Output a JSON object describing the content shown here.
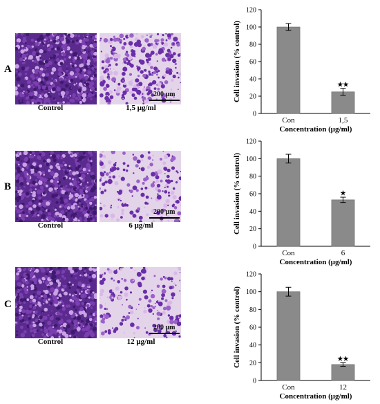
{
  "panels": [
    {
      "letter": "A",
      "image_left_caption": "Control",
      "image_right_caption": "1,5 μg/ml",
      "scale_label": "200 μm",
      "chart_data": {
        "type": "bar",
        "categories": [
          "Con",
          "1,5"
        ],
        "values": [
          100,
          25
        ],
        "errors": [
          4,
          4
        ],
        "significance": [
          "",
          "★★"
        ],
        "xlabel": "Concentration (μg/ml)",
        "ylabel": "Cell invasion (% control)",
        "ylim": [
          0,
          120
        ],
        "yticks": [
          0,
          20,
          40,
          60,
          80,
          100,
          120
        ],
        "grid": false,
        "bar_color": "#8a8a8a"
      }
    },
    {
      "letter": "B",
      "image_left_caption": "Control",
      "image_right_caption": "6 μg/ml",
      "scale_label": "200 μm",
      "chart_data": {
        "type": "bar",
        "categories": [
          "Con",
          "6"
        ],
        "values": [
          100,
          53
        ],
        "errors": [
          5,
          3
        ],
        "significance": [
          "",
          "★"
        ],
        "xlabel": "Concentration (μg/ml)",
        "ylabel": "Cell invasion (% control)",
        "ylim": [
          0,
          120
        ],
        "yticks": [
          0,
          20,
          40,
          60,
          80,
          100,
          120
        ],
        "grid": false,
        "bar_color": "#8a8a8a"
      }
    },
    {
      "letter": "C",
      "image_left_caption": "Control",
      "image_right_caption": "12 μg/ml",
      "scale_label": "200 μm",
      "chart_data": {
        "type": "bar",
        "categories": [
          "Con",
          "12"
        ],
        "values": [
          100,
          18
        ],
        "errors": [
          5,
          2
        ],
        "significance": [
          "",
          "★★"
        ],
        "xlabel": "Concentration (μg/ml)",
        "ylabel": "Cell invasion (% control)",
        "ylim": [
          0,
          120
        ],
        "yticks": [
          0,
          20,
          40,
          60,
          80,
          100,
          120
        ],
        "grid": false,
        "bar_color": "#8a8a8a"
      }
    }
  ]
}
